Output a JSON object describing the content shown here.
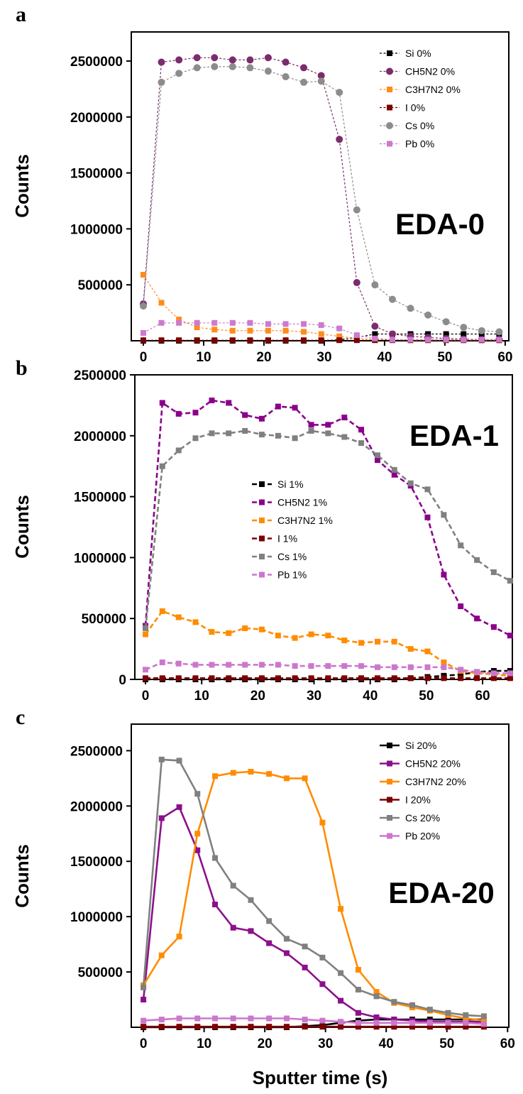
{
  "chart_data": [
    {
      "type": "line",
      "panel_label": "a",
      "annotation": "EDA-0",
      "y_label": "Counts",
      "legend": "upper right",
      "line_style": "dotted",
      "xlim": [
        -2,
        60.6
      ],
      "ylim": [
        0,
        2760000
      ],
      "xticks": [
        0,
        10,
        20,
        30,
        40,
        50,
        60
      ],
      "yticks": [
        500000,
        1000000,
        1500000,
        2000000,
        2500000
      ],
      "x": [
        0,
        3,
        5.9,
        8.9,
        11.8,
        14.8,
        17.7,
        20.7,
        23.6,
        26.6,
        29.5,
        32.5,
        35.4,
        38.4,
        41.3,
        44.3,
        47.2,
        50.2,
        53.1,
        56.1,
        59
      ],
      "series": [
        {
          "name": "Si 0%",
          "color": "#000000",
          "marker": "square",
          "values": [
            0,
            0,
            0,
            0,
            0,
            0,
            0,
            0,
            0,
            0,
            0,
            10000,
            30000,
            60000,
            60000,
            60000,
            60000,
            60000,
            60000,
            60000,
            60000
          ]
        },
        {
          "name": "CH5N2 0%",
          "color": "#7b2c6c",
          "marker": "circle",
          "values": [
            330000,
            2490000,
            2510000,
            2530000,
            2530000,
            2510000,
            2510000,
            2530000,
            2490000,
            2440000,
            2370000,
            1800000,
            520000,
            130000,
            60000,
            40000,
            30000,
            20000,
            15000,
            10000,
            10000
          ]
        },
        {
          "name": "C3H7N2 0%",
          "color": "#ff8c1a",
          "marker": "square",
          "values": [
            590000,
            340000,
            190000,
            120000,
            100000,
            90000,
            90000,
            90000,
            90000,
            80000,
            60000,
            40000,
            20000,
            10000,
            10000,
            5000,
            5000,
            5000,
            5000,
            5000,
            5000
          ]
        },
        {
          "name": "I 0%",
          "color": "#7b0000",
          "marker": "square",
          "values": [
            5000,
            5000,
            5000,
            5000,
            5000,
            5000,
            5000,
            5000,
            5000,
            5000,
            5000,
            5000,
            5000,
            5000,
            5000,
            5000,
            5000,
            5000,
            5000,
            5000,
            5000
          ]
        },
        {
          "name": "Cs 0%",
          "color": "#8c8c8c",
          "marker": "circle",
          "values": [
            310000,
            2310000,
            2390000,
            2440000,
            2450000,
            2450000,
            2440000,
            2410000,
            2360000,
            2310000,
            2320000,
            2220000,
            1170000,
            500000,
            370000,
            290000,
            230000,
            170000,
            120000,
            90000,
            80000
          ]
        },
        {
          "name": "Pb 0%",
          "color": "#cc7acc",
          "marker": "square",
          "values": [
            70000,
            160000,
            160000,
            160000,
            160000,
            160000,
            160000,
            150000,
            150000,
            150000,
            140000,
            110000,
            50000,
            20000,
            10000,
            10000,
            10000,
            10000,
            10000,
            10000,
            10000
          ]
        }
      ]
    },
    {
      "type": "line",
      "panel_label": "b",
      "annotation": "EDA-1",
      "y_label": "Counts",
      "legend": "center",
      "line_style": "dashed",
      "xlim": [
        -1.9,
        65.3
      ],
      "ylim": [
        0,
        2500000
      ],
      "xticks": [
        0,
        10,
        20,
        30,
        40,
        50,
        60
      ],
      "yticks": [
        0,
        500000,
        1000000,
        1500000,
        2000000,
        2500000
      ],
      "x": [
        0,
        3,
        5.9,
        8.9,
        11.8,
        14.8,
        17.7,
        20.7,
        23.6,
        26.6,
        29.5,
        32.5,
        35.4,
        38.4,
        41.3,
        44.3,
        47.2,
        50.2,
        53.1,
        56.1,
        59,
        62,
        64.9
      ],
      "series": [
        {
          "name": "Si 1%",
          "color": "#000000",
          "marker": "square",
          "values": [
            0,
            0,
            0,
            0,
            0,
            0,
            0,
            0,
            0,
            0,
            0,
            0,
            0,
            0,
            0,
            0,
            10000,
            20000,
            30000,
            40000,
            60000,
            70000,
            70000
          ]
        },
        {
          "name": "CH5N2 1%",
          "color": "#8b008b",
          "marker": "square",
          "values": [
            440000,
            2270000,
            2180000,
            2190000,
            2290000,
            2270000,
            2170000,
            2140000,
            2240000,
            2230000,
            2090000,
            2090000,
            2150000,
            2050000,
            1800000,
            1680000,
            1590000,
            1330000,
            860000,
            600000,
            500000,
            430000,
            360000
          ]
        },
        {
          "name": "C3H7N2 1%",
          "color": "#ff8c00",
          "marker": "square",
          "values": [
            370000,
            560000,
            510000,
            470000,
            390000,
            380000,
            420000,
            410000,
            360000,
            340000,
            370000,
            360000,
            320000,
            300000,
            310000,
            310000,
            250000,
            230000,
            140000,
            70000,
            50000,
            40000,
            30000
          ]
        },
        {
          "name": "I 1%",
          "color": "#7b0000",
          "marker": "square",
          "values": [
            10000,
            10000,
            10000,
            10000,
            10000,
            10000,
            10000,
            10000,
            10000,
            10000,
            10000,
            10000,
            10000,
            10000,
            10000,
            10000,
            10000,
            10000,
            10000,
            10000,
            10000,
            10000,
            10000
          ]
        },
        {
          "name": "Cs 1%",
          "color": "#808080",
          "marker": "square",
          "values": [
            420000,
            1750000,
            1880000,
            1980000,
            2020000,
            2020000,
            2040000,
            2010000,
            2000000,
            1980000,
            2040000,
            2020000,
            1990000,
            1940000,
            1840000,
            1720000,
            1610000,
            1560000,
            1350000,
            1100000,
            980000,
            880000,
            810000
          ]
        },
        {
          "name": "Pb 1%",
          "color": "#cc77cc",
          "marker": "square",
          "values": [
            80000,
            140000,
            130000,
            120000,
            120000,
            120000,
            120000,
            120000,
            120000,
            110000,
            110000,
            110000,
            110000,
            110000,
            100000,
            100000,
            100000,
            100000,
            100000,
            80000,
            60000,
            50000,
            50000
          ]
        }
      ]
    },
    {
      "type": "line",
      "panel_label": "c",
      "annotation": "EDA-20",
      "y_label": "Counts",
      "x_label": "Sputter time (s)",
      "legend": "upper right",
      "line_style": "solid",
      "xlim": [
        -2,
        60.2
      ],
      "ylim": [
        0,
        2740000
      ],
      "xticks": [
        0,
        10,
        20,
        30,
        40,
        50,
        60
      ],
      "yticks": [
        500000,
        1000000,
        1500000,
        2000000,
        2500000
      ],
      "x": [
        0,
        3,
        5.9,
        8.9,
        11.8,
        14.8,
        17.7,
        20.7,
        23.6,
        26.6,
        29.5,
        32.5,
        35.4,
        38.4,
        41.3,
        44.3,
        47.2,
        50.2,
        53.1,
        56.1
      ],
      "series": [
        {
          "name": "Si 20%",
          "color": "#000000",
          "marker": "square",
          "values": [
            0,
            0,
            0,
            0,
            0,
            0,
            0,
            0,
            0,
            10000,
            20000,
            40000,
            60000,
            70000,
            70000,
            70000,
            70000,
            70000,
            70000,
            70000
          ]
        },
        {
          "name": "CH5N2 20%",
          "color": "#8b108b",
          "marker": "square",
          "values": [
            250000,
            1890000,
            1990000,
            1600000,
            1110000,
            900000,
            870000,
            760000,
            670000,
            540000,
            390000,
            240000,
            130000,
            90000,
            70000,
            60000,
            50000,
            50000,
            50000,
            50000
          ]
        },
        {
          "name": "C3H7N2 20%",
          "color": "#ff8c00",
          "marker": "square",
          "values": [
            380000,
            650000,
            820000,
            1750000,
            2270000,
            2300000,
            2310000,
            2290000,
            2250000,
            2250000,
            1850000,
            1070000,
            520000,
            320000,
            220000,
            180000,
            150000,
            110000,
            80000,
            60000
          ]
        },
        {
          "name": "I 20%",
          "color": "#7b0000",
          "marker": "square",
          "values": [
            5000,
            5000,
            5000,
            5000,
            5000,
            5000,
            5000,
            5000,
            5000,
            5000,
            5000,
            5000,
            5000,
            5000,
            5000,
            5000,
            5000,
            5000,
            5000,
            5000
          ]
        },
        {
          "name": "Cs 20%",
          "color": "#808080",
          "marker": "square",
          "values": [
            360000,
            2420000,
            2410000,
            2110000,
            1530000,
            1280000,
            1150000,
            960000,
            800000,
            730000,
            630000,
            490000,
            340000,
            280000,
            230000,
            200000,
            160000,
            130000,
            110000,
            100000
          ]
        },
        {
          "name": "Pb 20%",
          "color": "#cc77cc",
          "marker": "square",
          "values": [
            60000,
            70000,
            80000,
            80000,
            80000,
            80000,
            80000,
            80000,
            80000,
            70000,
            60000,
            50000,
            40000,
            40000,
            40000,
            40000,
            40000,
            40000,
            40000,
            30000
          ]
        }
      ]
    }
  ]
}
